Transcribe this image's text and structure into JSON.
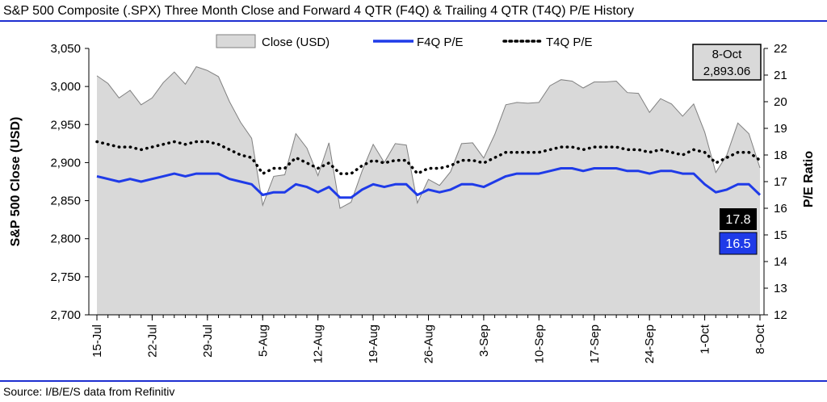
{
  "title": "S&P 500 Composite (.SPX) Three Month Close and Forward 4 QTR (F4Q) & Trailing 4 QTR (T4Q) P/E History",
  "source": "Source: I/B/E/S data from Refinitiv",
  "colors": {
    "rule": "#1e2fd0",
    "close_fill": "#d9d9d9",
    "close_stroke": "#808080",
    "f4q_line": "#1f3be8",
    "t4q_line": "#000000"
  },
  "chart_data": {
    "type": "line",
    "title": "",
    "ylabel": "S&P 500 Close (USD)",
    "y2label": "P/E Ratio",
    "ylim": [
      2700,
      3050
    ],
    "yticks": [
      "2,700",
      "2,750",
      "2,800",
      "2,850",
      "2,900",
      "2,950",
      "3,000",
      "3,050"
    ],
    "y2lim": [
      12,
      22
    ],
    "y2ticks": [
      "12",
      "13",
      "14",
      "15",
      "16",
      "17",
      "18",
      "19",
      "20",
      "21",
      "22"
    ],
    "xticks": [
      "15-Jul",
      "22-Jul",
      "29-Jul",
      "5-Aug",
      "12-Aug",
      "19-Aug",
      "26-Aug",
      "3-Sep",
      "10-Sep",
      "17-Sep",
      "24-Sep",
      "1-Oct",
      "8-Oct"
    ],
    "dates": [
      "15-Jul",
      "16-Jul",
      "17-Jul",
      "18-Jul",
      "19-Jul",
      "22-Jul",
      "23-Jul",
      "24-Jul",
      "25-Jul",
      "26-Jul",
      "29-Jul",
      "30-Jul",
      "31-Jul",
      "1-Aug",
      "2-Aug",
      "5-Aug",
      "6-Aug",
      "7-Aug",
      "8-Aug",
      "9-Aug",
      "12-Aug",
      "13-Aug",
      "14-Aug",
      "15-Aug",
      "16-Aug",
      "19-Aug",
      "20-Aug",
      "21-Aug",
      "22-Aug",
      "23-Aug",
      "26-Aug",
      "27-Aug",
      "28-Aug",
      "29-Aug",
      "30-Aug",
      "3-Sep",
      "4-Sep",
      "5-Sep",
      "6-Sep",
      "9-Sep",
      "10-Sep",
      "11-Sep",
      "12-Sep",
      "13-Sep",
      "16-Sep",
      "17-Sep",
      "18-Sep",
      "19-Sep",
      "20-Sep",
      "23-Sep",
      "24-Sep",
      "25-Sep",
      "26-Sep",
      "27-Sep",
      "30-Sep",
      "1-Oct",
      "2-Oct",
      "3-Oct",
      "4-Oct",
      "7-Oct",
      "8-Oct"
    ],
    "legend_position": "top-center",
    "series": [
      {
        "name": "Close (USD)",
        "kind": "area",
        "axis": "left",
        "values": [
          3014,
          3004,
          2985,
          2995,
          2976,
          2985,
          3005,
          3019,
          3003,
          3026,
          3021,
          3013,
          2980,
          2953,
          2932,
          2844,
          2882,
          2884,
          2938,
          2919,
          2883,
          2926,
          2840,
          2848,
          2889,
          2924,
          2900,
          2925,
          2923,
          2847,
          2878,
          2870,
          2888,
          2925,
          2926,
          2906,
          2937,
          2976,
          2979,
          2978,
          2979,
          3001,
          3009,
          3007,
          2998,
          3006,
          3006,
          3007,
          2992,
          2991,
          2966,
          2984,
          2977,
          2961,
          2977,
          2940,
          2887,
          2910,
          2952,
          2938,
          2893
        ]
      },
      {
        "name": "F4Q P/E",
        "kind": "line",
        "axis": "right",
        "values": [
          17.2,
          17.1,
          17.0,
          17.1,
          17.0,
          17.1,
          17.2,
          17.3,
          17.2,
          17.3,
          17.3,
          17.3,
          17.1,
          17.0,
          16.9,
          16.5,
          16.6,
          16.6,
          16.9,
          16.8,
          16.6,
          16.8,
          16.4,
          16.4,
          16.7,
          16.9,
          16.8,
          16.9,
          16.9,
          16.5,
          16.7,
          16.6,
          16.7,
          16.9,
          16.9,
          16.8,
          17.0,
          17.2,
          17.3,
          17.3,
          17.3,
          17.4,
          17.5,
          17.5,
          17.4,
          17.5,
          17.5,
          17.5,
          17.4,
          17.4,
          17.3,
          17.4,
          17.4,
          17.3,
          17.3,
          16.9,
          16.6,
          16.7,
          16.9,
          16.9,
          16.5
        ]
      },
      {
        "name": "T4Q P/E",
        "kind": "line",
        "dashed": true,
        "axis": "right",
        "values": [
          18.5,
          18.4,
          18.3,
          18.3,
          18.2,
          18.3,
          18.4,
          18.5,
          18.4,
          18.5,
          18.5,
          18.4,
          18.2,
          18.0,
          17.9,
          17.3,
          17.5,
          17.5,
          17.9,
          17.7,
          17.5,
          17.7,
          17.3,
          17.3,
          17.6,
          17.8,
          17.7,
          17.8,
          17.8,
          17.3,
          17.5,
          17.5,
          17.6,
          17.8,
          17.8,
          17.7,
          17.9,
          18.1,
          18.1,
          18.1,
          18.1,
          18.2,
          18.3,
          18.3,
          18.2,
          18.3,
          18.3,
          18.3,
          18.2,
          18.2,
          18.1,
          18.2,
          18.1,
          18.0,
          18.2,
          18.1,
          17.7,
          17.9,
          18.1,
          18.1,
          17.8
        ]
      }
    ],
    "annotations": {
      "last_date": "8-Oct",
      "last_close": "2,893.06",
      "last_t4q": "17.8",
      "last_f4q": "16.5"
    }
  }
}
